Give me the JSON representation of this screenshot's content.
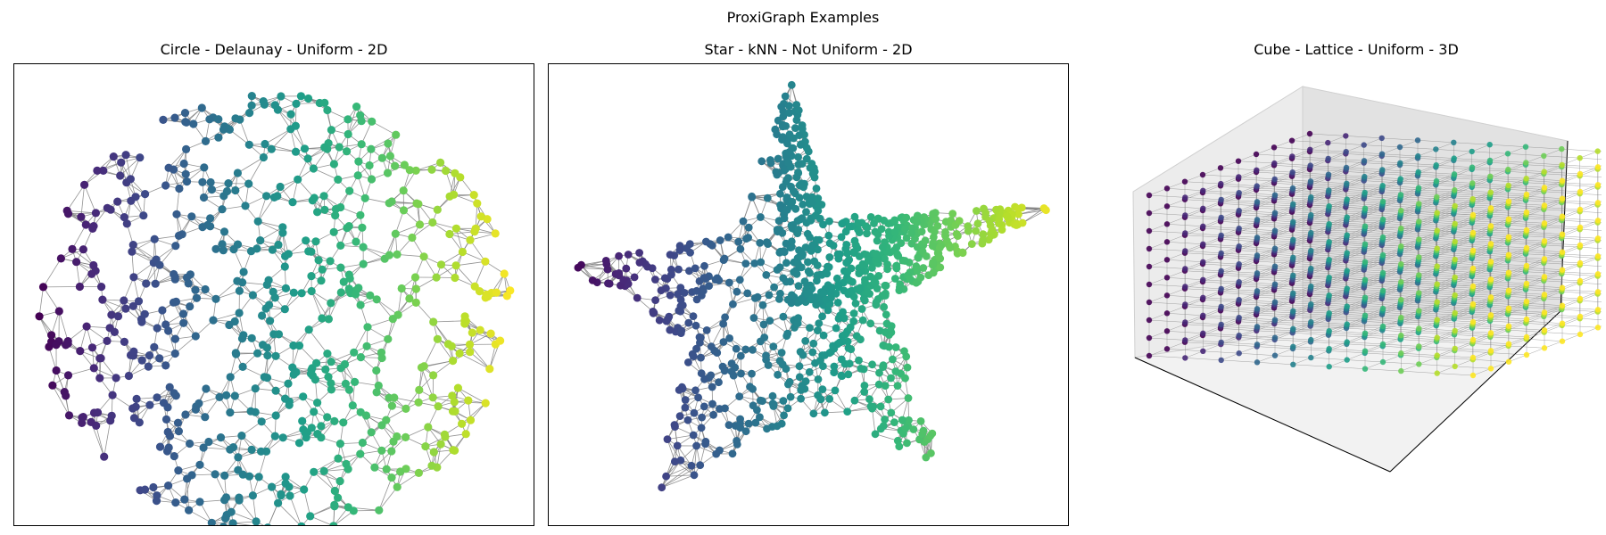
{
  "figure": {
    "title": "ProxiGraph Examples"
  },
  "chart_data": [
    {
      "type": "network",
      "title": "Circle - Delaunay - Uniform - 2D",
      "shape": "Circle",
      "proximity_mode": "Delaunay",
      "sampling": "Uniform",
      "dimension": "2D",
      "node_color": "viridis by x position",
      "edge_color": "#808080",
      "axes_visible": false,
      "frame": true
    },
    {
      "type": "network",
      "title": "Star - kNN - Not Uniform - 2D",
      "shape": "Star",
      "proximity_mode": "kNN",
      "sampling": "Not Uniform",
      "dimension": "2D",
      "node_color": "viridis by x position",
      "edge_color": "#808080",
      "axes_visible": false,
      "frame": true
    },
    {
      "type": "network-3d",
      "title": "Cube - Lattice - Uniform - 3D",
      "shape": "Cube",
      "proximity_mode": "Lattice",
      "sampling": "Uniform",
      "dimension": "3D",
      "node_color": "viridis by x position",
      "edge_color": "#808080",
      "axes_visible": false,
      "frame": false
    }
  ]
}
